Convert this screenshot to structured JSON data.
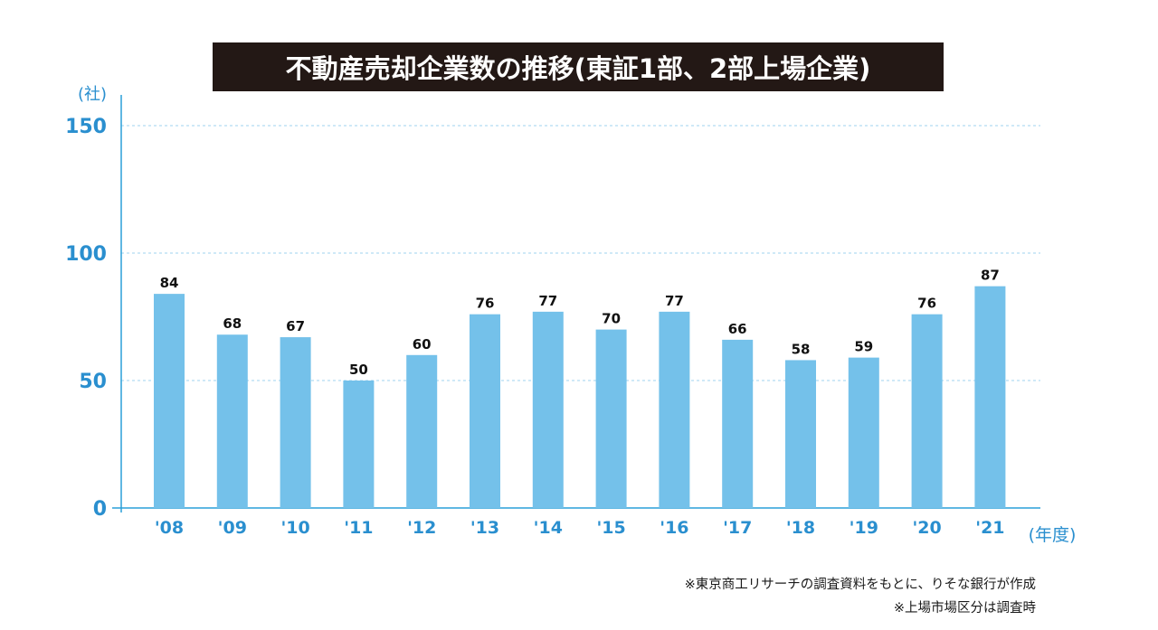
{
  "title": "不動産売却企業数の推移(東証1部、2部上場企業)",
  "notes": [
    "※東京商工リサーチの調査資料をもとに、りそな銀行が作成",
    "※上場市場区分は調査時"
  ],
  "colors": {
    "bar": "#74c1ea",
    "axis": "#2a9fd8",
    "tick_text": "#2a8fcf",
    "grid": "#9fd3ef",
    "title_bg": "#231815"
  },
  "chart_data": {
    "type": "bar",
    "categories": [
      "'08",
      "'09",
      "'10",
      "'11",
      "'12",
      "'13",
      "'14",
      "'15",
      "'16",
      "'17",
      "'18",
      "'19",
      "'20",
      "'21"
    ],
    "values": [
      84,
      68,
      67,
      50,
      60,
      76,
      77,
      70,
      77,
      66,
      58,
      59,
      76,
      87
    ],
    "ylabel": "(社)",
    "xlabel": "(年度)",
    "ylim": [
      0,
      150
    ],
    "yticks": [
      0,
      50,
      100,
      150
    ],
    "grid": true,
    "data_labels": true
  }
}
